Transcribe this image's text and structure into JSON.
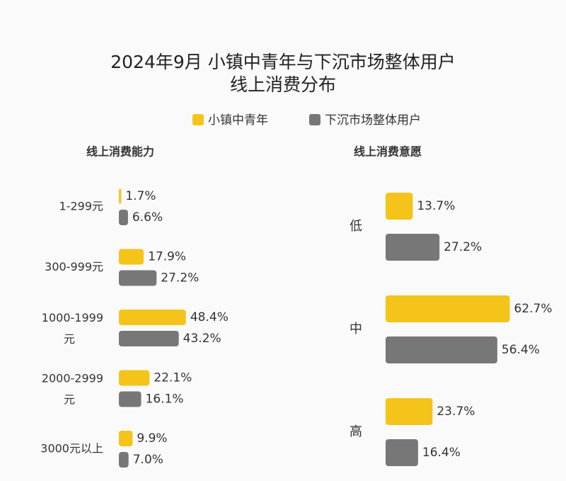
{
  "title": "2024年9月 小镇中青年与下沉市场整体用户\n线上消费分布",
  "chart_data": [
    {
      "type": "bar",
      "orientation": "horizontal",
      "title": "线上消费能力",
      "categories": [
        "1-299元",
        "300-999元",
        "1000-1999元",
        "2000-2999元",
        "3000元以上"
      ],
      "series": [
        {
          "name": "小镇中青年",
          "color": "#f5c41a",
          "values": [
            1.7,
            17.9,
            48.4,
            22.1,
            9.9
          ],
          "value_labels": [
            "1.7%",
            "17.9%",
            "48.4%",
            "22.1%",
            "9.9%"
          ]
        },
        {
          "name": "下沉市场整体用户",
          "color": "#777777",
          "values": [
            6.6,
            27.2,
            43.2,
            16.1,
            7.0
          ],
          "value_labels": [
            "6.6%",
            "27.2%",
            "43.2%",
            "16.1%",
            "7.0%"
          ]
        }
      ]
    },
    {
      "type": "bar",
      "orientation": "horizontal",
      "title": "线上消费意愿",
      "categories": [
        "低",
        "中",
        "高"
      ],
      "series": [
        {
          "color": "#f5c41a",
          "values": [
            13.7,
            62.7,
            23.7
          ],
          "value_labels": [
            "13.7%",
            "62.7%",
            "23.7%"
          ]
        },
        {
          "color": "#777777",
          "values": [
            27.2,
            56.4,
            16.4
          ],
          "value_labels": [
            "27.2%",
            "56.4%",
            "16.4%"
          ]
        }
      ]
    }
  ]
}
